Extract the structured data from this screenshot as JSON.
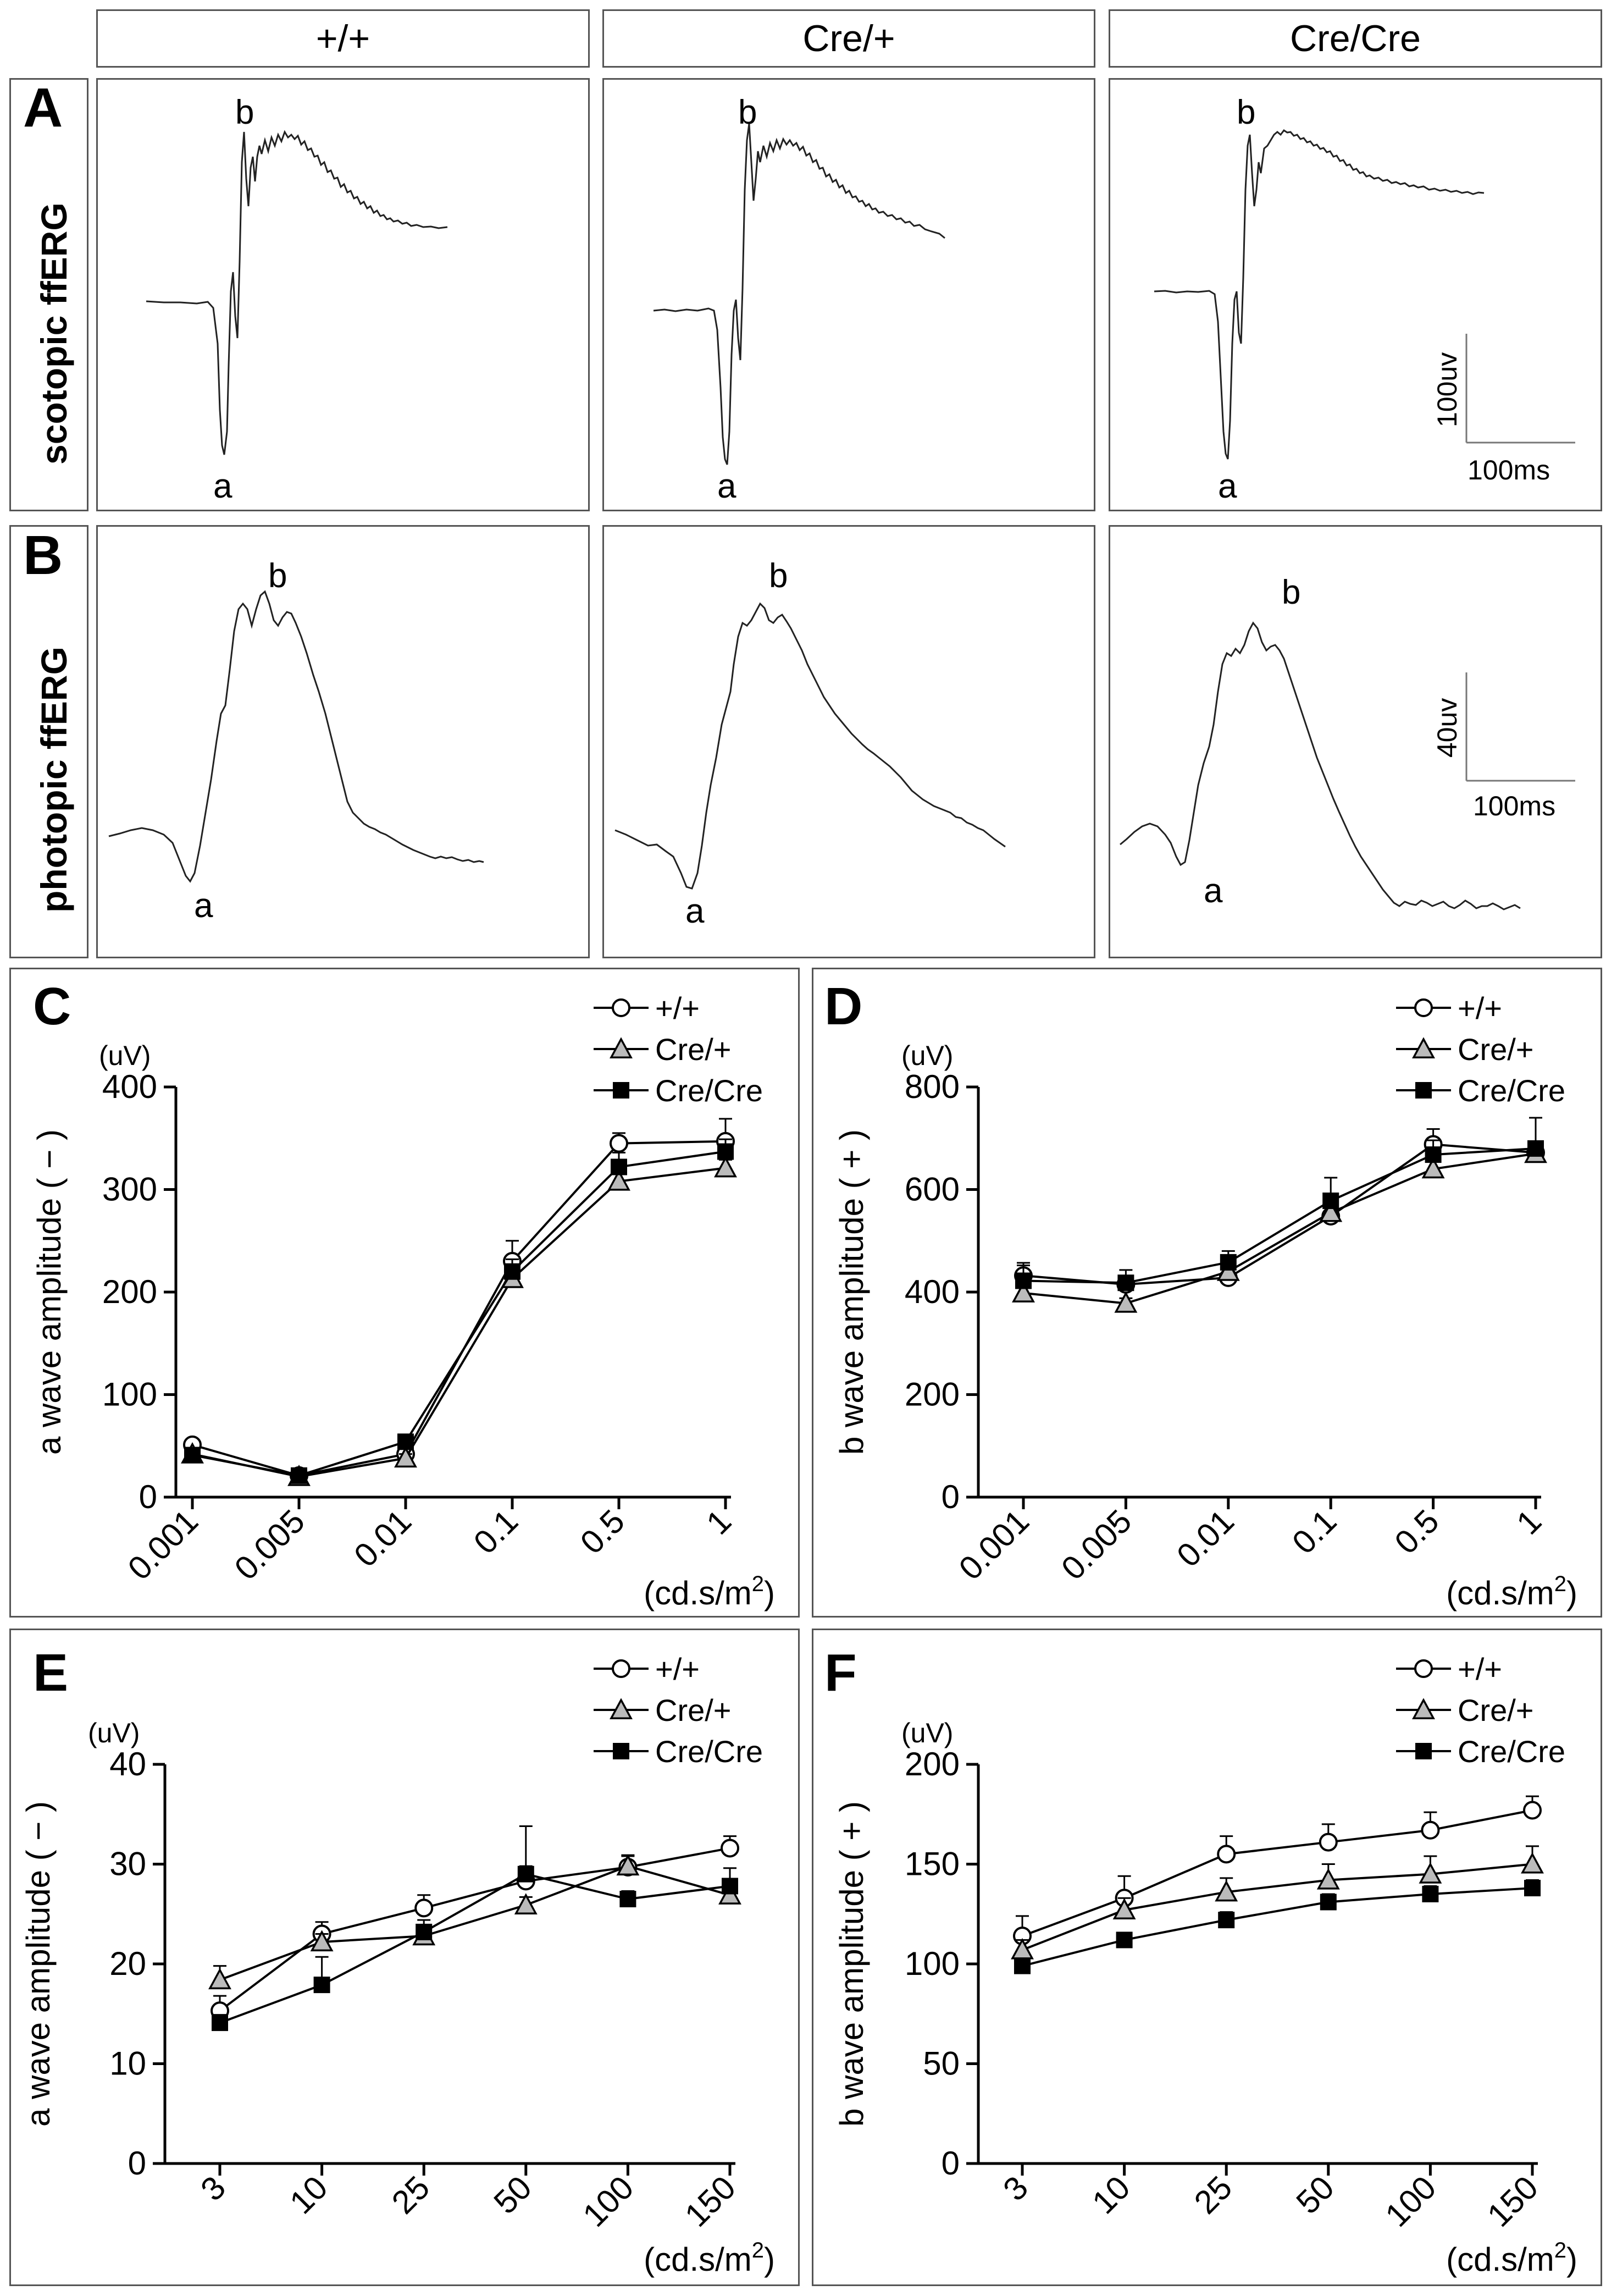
{
  "columns": [
    "+/+",
    "Cre/+",
    "Cre/Cre"
  ],
  "panel_A": {
    "letter": "A",
    "row_label": "scotopic ffERG",
    "wave_label_a": "a",
    "wave_label_b": "b",
    "scalebar_amplitude": "100uv",
    "scalebar_time": "100ms"
  },
  "panel_B": {
    "letter": "B",
    "row_label": "photopic ffERG",
    "wave_label_a": "a",
    "wave_label_b": "b",
    "scalebar_amplitude": "40uv",
    "scalebar_time": "100ms"
  },
  "legend": {
    "wt": "+/+",
    "het": "Cre/+",
    "hom": "Cre/Cre",
    "marker_wt": "open-circle",
    "marker_het": "grey-triangle",
    "marker_hom": "black-square"
  },
  "colors": {
    "line": "#000000",
    "frame": "#555555",
    "het_fill": "#bbbbbb"
  },
  "chart_data": [
    {
      "id": "C",
      "type": "line",
      "unit_label": "(uV)",
      "ylabel": "a wave amplitude ( − )",
      "xunit": "(cd.s/m2)",
      "categories": [
        "0.001",
        "0.005",
        "0.01",
        "0.1",
        "0.5",
        "1"
      ],
      "yticks": [
        0,
        100,
        200,
        300,
        400
      ],
      "ylim": [
        0,
        400
      ],
      "series": [
        {
          "name": "+/+",
          "values": [
            51,
            21,
            42,
            230,
            345,
            347
          ],
          "err": [
            3,
            3,
            5,
            20,
            10,
            22
          ]
        },
        {
          "name": "Cre/+",
          "values": [
            42,
            20,
            38,
            213,
            308,
            321
          ],
          "err": [
            3,
            3,
            4,
            8,
            8,
            8
          ]
        },
        {
          "name": "Cre/Cre",
          "values": [
            41,
            21,
            54,
            220,
            322,
            337
          ],
          "err": [
            3,
            3,
            6,
            12,
            14,
            12
          ]
        }
      ]
    },
    {
      "id": "D",
      "type": "line",
      "unit_label": "(uV)",
      "ylabel": "b wave amplitude ( + )",
      "xunit": "(cd.s/m2)",
      "categories": [
        "0.001",
        "0.005",
        "0.01",
        "0.1",
        "0.5",
        "1"
      ],
      "yticks": [
        0,
        200,
        400,
        600,
        800
      ],
      "ylim": [
        0,
        800
      ],
      "series": [
        {
          "name": "+/+",
          "values": [
            432,
            415,
            428,
            548,
            688,
            672
          ],
          "err": [
            25,
            15,
            12,
            10,
            30,
            15
          ]
        },
        {
          "name": "Cre/+",
          "values": [
            398,
            378,
            440,
            555,
            640,
            670
          ],
          "err": [
            15,
            10,
            12,
            15,
            15,
            12
          ]
        },
        {
          "name": "Cre/Cre",
          "values": [
            422,
            418,
            458,
            578,
            668,
            680
          ],
          "err": [
            30,
            25,
            22,
            45,
            28,
            60
          ]
        }
      ]
    },
    {
      "id": "E",
      "type": "line",
      "unit_label": "(uV)",
      "ylabel": "a wave amplitude ( − )",
      "xunit": "(cd.s/m2)",
      "categories": [
        "3",
        "10",
        "25",
        "50",
        "100",
        "150"
      ],
      "yticks": [
        0,
        10,
        20,
        30,
        40
      ],
      "ylim": [
        0,
        40
      ],
      "series": [
        {
          "name": "+/+",
          "values": [
            15.3,
            23.0,
            25.6,
            28.3,
            29.7,
            31.6
          ],
          "err": [
            1.5,
            1.2,
            1.3,
            1.5,
            1.2,
            1.2
          ]
        },
        {
          "name": "Cre/+",
          "values": [
            18.4,
            22.2,
            22.8,
            25.9,
            29.8,
            26.9
          ],
          "err": [
            1.4,
            0.8,
            0.8,
            0.8,
            1.0,
            0.7
          ]
        },
        {
          "name": "Cre/Cre",
          "values": [
            14.1,
            17.9,
            23.2,
            29.0,
            26.5,
            27.8
          ],
          "err": [
            0.8,
            2.8,
            1.2,
            4.8,
            0.8,
            1.8
          ]
        }
      ]
    },
    {
      "id": "F",
      "type": "line",
      "unit_label": "(uV)",
      "ylabel": "b wave amplitude ( + )",
      "xunit": "(cd.s/m2)",
      "categories": [
        "3",
        "10",
        "25",
        "50",
        "100",
        "150"
      ],
      "yticks": [
        0,
        50,
        100,
        150,
        200
      ],
      "ylim": [
        0,
        200
      ],
      "series": [
        {
          "name": "+/+",
          "values": [
            114,
            133,
            155,
            161,
            167,
            177
          ],
          "err": [
            10,
            11,
            9,
            9,
            9,
            7
          ]
        },
        {
          "name": "Cre/+",
          "values": [
            107,
            127,
            136,
            142,
            145,
            150
          ],
          "err": [
            5,
            6,
            7,
            8,
            9,
            9
          ]
        },
        {
          "name": "Cre/Cre",
          "values": [
            99,
            112,
            122,
            131,
            135,
            138
          ],
          "err": [
            3,
            3,
            4,
            4,
            4,
            4
          ]
        }
      ]
    }
  ]
}
